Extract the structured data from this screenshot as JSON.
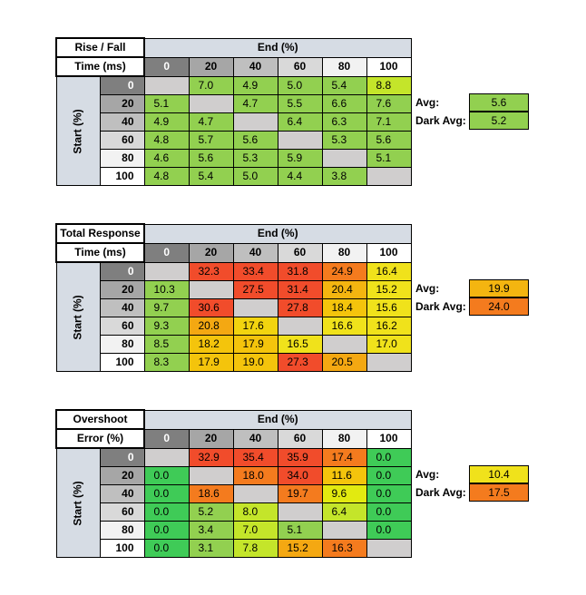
{
  "colors": {
    "header_blue": "#d6dce4",
    "diag_gray": "#d0cece",
    "head_0": "#7f7f7f",
    "head_20": "#a6a6a6",
    "head_40": "#bfbfbf",
    "head_60": "#d9d9d9",
    "head_80": "#f2f2f2",
    "head_100": "#ffffff"
  },
  "chart_data": [
    {
      "type": "table",
      "title_line1": "Rise / Fall",
      "title_line2": "Time (ms)",
      "end_label": "End (%)",
      "start_label": "Start (%)",
      "columns": [
        "0",
        "20",
        "40",
        "60",
        "80",
        "100"
      ],
      "rows": [
        "0",
        "20",
        "40",
        "60",
        "80",
        "100"
      ],
      "values": [
        [
          "",
          "7.0",
          "4.9",
          "5.0",
          "5.4",
          "8.8"
        ],
        [
          "5.1",
          "",
          "4.7",
          "5.5",
          "6.6",
          "7.6"
        ],
        [
          "4.9",
          "4.7",
          "",
          "6.4",
          "6.3",
          "7.1"
        ],
        [
          "4.8",
          "5.7",
          "5.6",
          "",
          "5.3",
          "5.6"
        ],
        [
          "4.6",
          "5.6",
          "5.3",
          "5.9",
          "",
          "5.1"
        ],
        [
          "4.8",
          "5.4",
          "5.0",
          "4.4",
          "3.8",
          ""
        ]
      ],
      "colors": [
        [
          null,
          "#92d050",
          "#92d050",
          "#92d050",
          "#92d050",
          "#c4e52a"
        ],
        [
          "#92d050",
          null,
          "#92d050",
          "#92d050",
          "#92d050",
          "#92d050"
        ],
        [
          "#92d050",
          "#92d050",
          null,
          "#92d050",
          "#92d050",
          "#92d050"
        ],
        [
          "#92d050",
          "#92d050",
          "#92d050",
          null,
          "#92d050",
          "#92d050"
        ],
        [
          "#92d050",
          "#92d050",
          "#92d050",
          "#92d050",
          null,
          "#92d050"
        ],
        [
          "#92d050",
          "#92d050",
          "#92d050",
          "#92d050",
          "#92d050",
          null
        ]
      ],
      "avg_label": "Avg:",
      "avg_value": "5.6",
      "avg_color": "#92d050",
      "dark_avg_label": "Dark Avg:",
      "dark_avg_value": "5.2",
      "dark_avg_color": "#92d050"
    },
    {
      "type": "table",
      "title_line1": "Total Response",
      "title_line2": "Time (ms)",
      "end_label": "End (%)",
      "start_label": "Start (%)",
      "columns": [
        "0",
        "20",
        "40",
        "60",
        "80",
        "100"
      ],
      "rows": [
        "0",
        "20",
        "40",
        "60",
        "80",
        "100"
      ],
      "values": [
        [
          "",
          "32.3",
          "33.4",
          "31.8",
          "24.9",
          "16.4"
        ],
        [
          "10.3",
          "",
          "27.5",
          "31.4",
          "20.4",
          "15.2"
        ],
        [
          "9.7",
          "30.6",
          "",
          "27.8",
          "18.4",
          "15.6"
        ],
        [
          "9.3",
          "20.8",
          "17.6",
          "",
          "16.6",
          "16.2"
        ],
        [
          "8.5",
          "18.2",
          "17.9",
          "16.5",
          "",
          "17.0"
        ],
        [
          "8.3",
          "17.9",
          "19.0",
          "27.3",
          "20.5",
          ""
        ]
      ],
      "colors": [
        [
          null,
          "#f14c2b",
          "#f14c2b",
          "#f14c2b",
          "#f47b1e",
          "#f0e21b"
        ],
        [
          "#92d050",
          null,
          "#f14c2b",
          "#f14c2b",
          "#f4b510",
          "#f0e21b"
        ],
        [
          "#92d050",
          "#f14c2b",
          null,
          "#f14c2b",
          "#f4c40c",
          "#f0e21b"
        ],
        [
          "#92d050",
          "#f4a812",
          "#f2d40f",
          null,
          "#f0e21b",
          "#f0e21b"
        ],
        [
          "#92d050",
          "#f4c40c",
          "#f4c40c",
          "#f0e21b",
          null,
          "#f0e21b"
        ],
        [
          "#92d050",
          "#f4c40c",
          "#f4c40c",
          "#f14c2b",
          "#f4a812",
          null
        ]
      ],
      "avg_label": "Avg:",
      "avg_value": "19.9",
      "avg_color": "#f4b510",
      "dark_avg_label": "Dark Avg:",
      "dark_avg_value": "24.0",
      "dark_avg_color": "#f47b1e"
    },
    {
      "type": "table",
      "title_line1": "Overshoot",
      "title_line2": "Error (%)",
      "end_label": "End (%)",
      "start_label": "Start (%)",
      "columns": [
        "0",
        "20",
        "40",
        "60",
        "80",
        "100"
      ],
      "rows": [
        "0",
        "20",
        "40",
        "60",
        "80",
        "100"
      ],
      "values": [
        [
          "",
          "32.9",
          "35.4",
          "35.9",
          "17.4",
          "0.0"
        ],
        [
          "0.0",
          "",
          "18.0",
          "34.0",
          "11.6",
          "0.0"
        ],
        [
          "0.0",
          "18.6",
          "",
          "19.7",
          "9.6",
          "0.0"
        ],
        [
          "0.0",
          "5.2",
          "8.0",
          "",
          "6.4",
          "0.0"
        ],
        [
          "0.0",
          "3.4",
          "7.0",
          "5.1",
          "",
          "0.0"
        ],
        [
          "0.0",
          "3.1",
          "7.8",
          "15.2",
          "16.3",
          ""
        ]
      ],
      "colors": [
        [
          null,
          "#f14c2b",
          "#f14c2b",
          "#f14c2b",
          "#f47b1e",
          "#3fcb57"
        ],
        [
          "#3fcb57",
          null,
          "#f47b1e",
          "#f14c2b",
          "#f4c40c",
          "#3fcb57"
        ],
        [
          "#3fcb57",
          "#f47b1e",
          null,
          "#f47b1e",
          "#e2ea10",
          "#3fcb57"
        ],
        [
          "#3fcb57",
          "#92d050",
          "#c4e52a",
          null,
          "#c4e52a",
          "#3fcb57"
        ],
        [
          "#3fcb57",
          "#92d050",
          "#c4e52a",
          "#92d050",
          null,
          "#3fcb57"
        ],
        [
          "#3fcb57",
          "#92d050",
          "#c4e52a",
          "#f4a812",
          "#f47b1e",
          null
        ]
      ],
      "avg_label": "Avg:",
      "avg_value": "10.4",
      "avg_color": "#f0e21b",
      "dark_avg_label": "Dark Avg:",
      "dark_avg_value": "17.5",
      "dark_avg_color": "#f47b1e"
    }
  ]
}
